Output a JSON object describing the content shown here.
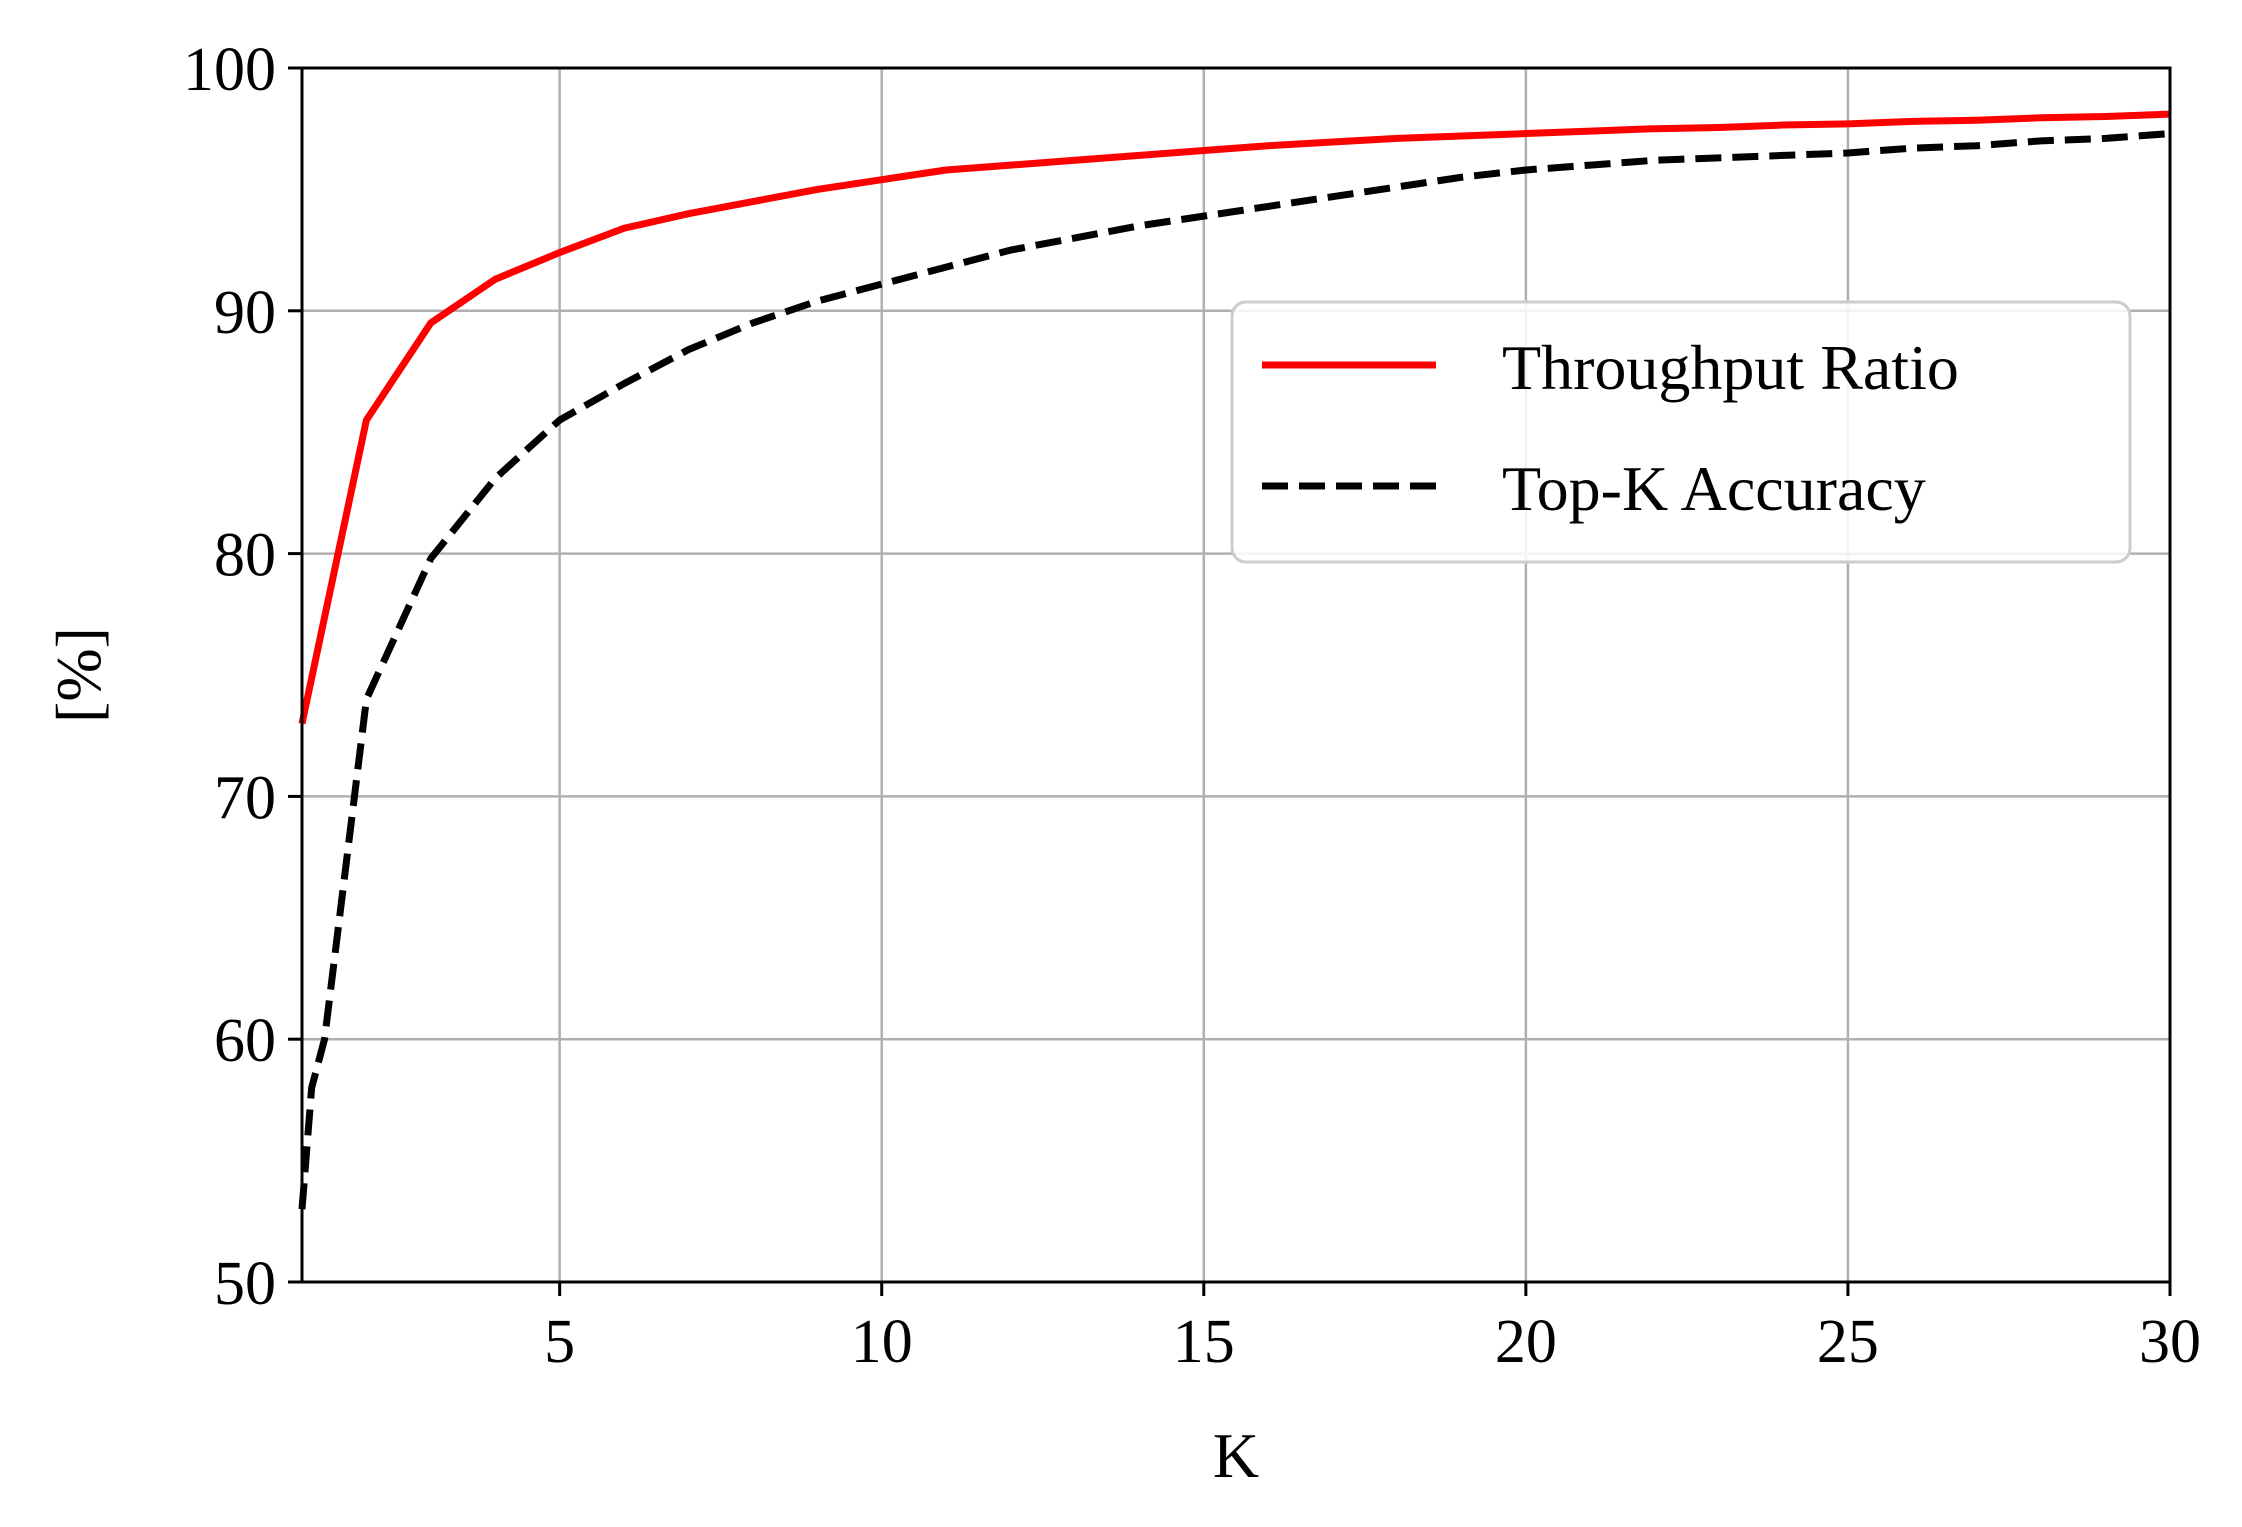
{
  "chart_data": {
    "type": "line",
    "title": "",
    "xlabel": "K",
    "ylabel": "[%]",
    "xlim": [
      1,
      30
    ],
    "ylim": [
      50,
      100
    ],
    "xticks": [
      5,
      10,
      15,
      20,
      25,
      30
    ],
    "yticks": [
      50,
      60,
      70,
      80,
      90,
      100
    ],
    "grid": true,
    "legend_position": "upper-right",
    "series": [
      {
        "name": "Throughput Ratio",
        "color": "#ff0000",
        "style": "solid",
        "x": [
          1,
          2,
          3,
          4,
          5,
          6,
          7,
          8,
          9,
          10,
          11,
          12,
          13,
          14,
          15,
          16,
          17,
          18,
          19,
          20,
          21,
          22,
          23,
          24,
          25,
          26,
          27,
          28,
          29,
          30
        ],
        "y": [
          73.0,
          85.5,
          89.5,
          91.3,
          92.4,
          93.4,
          94.0,
          94.5,
          95.0,
          95.4,
          95.8,
          96.0,
          96.2,
          96.4,
          96.6,
          96.8,
          96.95,
          97.1,
          97.2,
          97.3,
          97.4,
          97.5,
          97.55,
          97.65,
          97.7,
          97.8,
          97.85,
          97.95,
          98.0,
          98.1
        ]
      },
      {
        "name": "Top-K Accuracy",
        "color": "#000000",
        "style": "dashed",
        "x": [
          1,
          1.15,
          1.35,
          2,
          3,
          4,
          5,
          6,
          7,
          8,
          9,
          10,
          11,
          12,
          13,
          14,
          15,
          16,
          17,
          18,
          19,
          20,
          21,
          22,
          23,
          24,
          25,
          26,
          27,
          28,
          29,
          30
        ],
        "y": [
          53.0,
          58.0,
          60.0,
          74.0,
          79.8,
          83.1,
          85.5,
          87.0,
          88.4,
          89.5,
          90.4,
          91.1,
          91.8,
          92.5,
          93.0,
          93.5,
          93.9,
          94.3,
          94.7,
          95.1,
          95.5,
          95.8,
          96.0,
          96.2,
          96.3,
          96.4,
          96.5,
          96.7,
          96.8,
          97.0,
          97.1,
          97.3
        ]
      }
    ]
  }
}
